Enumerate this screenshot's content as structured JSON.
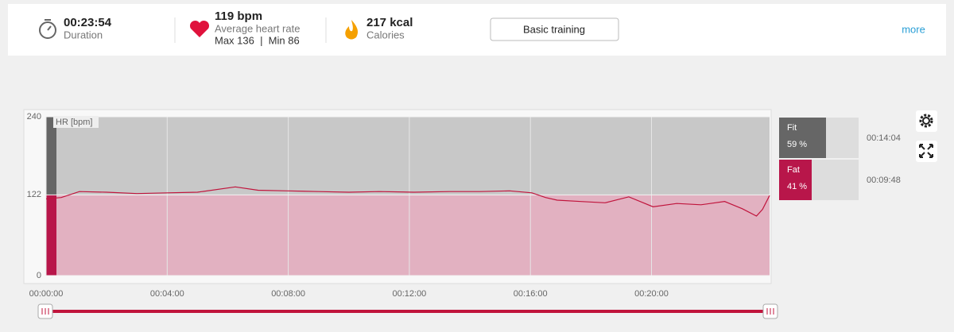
{
  "header": {
    "duration": "00:23:54",
    "duration_label": "Duration",
    "heart_rate": "119 bpm",
    "heart_rate_label": "Average heart rate",
    "max_min": "Max 136  |  Min 86",
    "calories": "217 kcal",
    "calories_label": "Calories",
    "button": "Basic training",
    "more": "more"
  },
  "chart_data": {
    "type": "line",
    "y_label": "HR [bpm]",
    "x": [
      0,
      30,
      66,
      120,
      180,
      240,
      300,
      375,
      420,
      477,
      540,
      600,
      660,
      729,
      800,
      860,
      919,
      963,
      990,
      1013,
      1060,
      1108,
      1155,
      1203,
      1250,
      1298,
      1345,
      1380,
      1408,
      1420,
      1434
    ],
    "series": [
      {
        "name": "HR",
        "color": "#c0143c",
        "values": [
          116,
          118,
          127,
          126,
          124,
          125,
          126,
          134,
          129,
          128,
          127,
          126,
          127,
          126,
          127,
          127,
          128,
          125,
          118,
          114,
          112,
          110,
          119,
          104,
          109,
          107,
          112,
          101,
          90,
          100,
          121
        ]
      }
    ],
    "xlim": [
      0,
      1434
    ],
    "ylim": [
      0,
      240
    ],
    "xticks": [
      {
        "value": 0,
        "label": "00:00:00"
      },
      {
        "value": 240,
        "label": "00:04:00"
      },
      {
        "value": 480,
        "label": "00:08:00"
      },
      {
        "value": 720,
        "label": "00:12:00"
      },
      {
        "value": 960,
        "label": "00:16:00"
      },
      {
        "value": 1200,
        "label": "00:20:00"
      }
    ],
    "yticks": [
      0,
      122,
      240
    ],
    "zones": [
      {
        "name": "Fit",
        "value": 59,
        "value_label": "59 %",
        "time": "00:14:04"
      },
      {
        "name": "Fat",
        "value": 41,
        "value_label": "41 %",
        "time": "00:09:48"
      }
    ]
  }
}
